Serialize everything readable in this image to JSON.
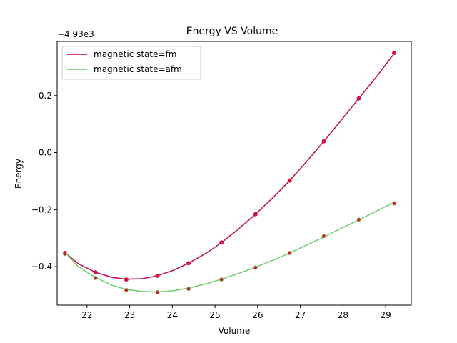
{
  "chart_data": {
    "type": "line",
    "title": "Energy VS Volume",
    "xlabel": "Volume",
    "ylabel": "Energy",
    "offset_text": "−4.93e3",
    "xlim": [
      21.3,
      29.6
    ],
    "ylim": [
      -0.535,
      0.39
    ],
    "x_ticks": [
      22,
      23,
      24,
      25,
      26,
      27,
      28,
      29
    ],
    "y_ticks": [
      -0.4,
      -0.2,
      0.0,
      0.2
    ],
    "y_tick_labels": [
      "−0.4",
      "−0.2",
      "0.0",
      "0.2"
    ],
    "legend_position": "upper-left",
    "grid": false,
    "point_color": "#e3102a",
    "series": [
      {
        "name": "magnetic state=fm",
        "color": "#c2185b",
        "points": [
          [
            21.48,
            -0.352
          ],
          [
            22.2,
            -0.42
          ],
          [
            22.92,
            -0.445
          ],
          [
            23.65,
            -0.432
          ],
          [
            24.38,
            -0.388
          ],
          [
            25.15,
            -0.315
          ],
          [
            25.95,
            -0.216
          ],
          [
            26.75,
            -0.098
          ],
          [
            27.55,
            0.04
          ],
          [
            28.37,
            0.19
          ],
          [
            29.2,
            0.35
          ]
        ],
        "fit": [
          [
            21.48,
            -0.35
          ],
          [
            21.8,
            -0.39
          ],
          [
            22.2,
            -0.42
          ],
          [
            22.6,
            -0.438
          ],
          [
            22.92,
            -0.444
          ],
          [
            23.3,
            -0.442
          ],
          [
            23.65,
            -0.432
          ],
          [
            24.0,
            -0.414
          ],
          [
            24.38,
            -0.388
          ],
          [
            24.8,
            -0.352
          ],
          [
            25.15,
            -0.316
          ],
          [
            25.55,
            -0.268
          ],
          [
            25.95,
            -0.216
          ],
          [
            26.35,
            -0.159
          ],
          [
            26.75,
            -0.098
          ],
          [
            27.15,
            -0.031
          ],
          [
            27.55,
            0.039
          ],
          [
            27.95,
            0.112
          ],
          [
            28.37,
            0.19
          ],
          [
            28.8,
            0.269
          ],
          [
            29.2,
            0.348
          ]
        ]
      },
      {
        "name": "magnetic state=afm",
        "color": "#77d077",
        "points": [
          [
            21.48,
            -0.355
          ],
          [
            22.2,
            -0.44
          ],
          [
            22.92,
            -0.482
          ],
          [
            23.65,
            -0.49
          ],
          [
            24.38,
            -0.478
          ],
          [
            25.15,
            -0.445
          ],
          [
            25.95,
            -0.403
          ],
          [
            26.75,
            -0.352
          ],
          [
            27.55,
            -0.293
          ],
          [
            28.37,
            -0.235
          ],
          [
            29.2,
            -0.178
          ]
        ],
        "fit": [
          [
            21.48,
            -0.35
          ],
          [
            21.8,
            -0.4
          ],
          [
            22.2,
            -0.438
          ],
          [
            22.6,
            -0.466
          ],
          [
            22.92,
            -0.48
          ],
          [
            23.3,
            -0.487
          ],
          [
            23.6,
            -0.489
          ],
          [
            24.0,
            -0.485
          ],
          [
            24.38,
            -0.475
          ],
          [
            24.8,
            -0.46
          ],
          [
            25.15,
            -0.444
          ],
          [
            25.55,
            -0.424
          ],
          [
            25.95,
            -0.402
          ],
          [
            26.35,
            -0.378
          ],
          [
            26.75,
            -0.352
          ],
          [
            27.15,
            -0.324
          ],
          [
            27.55,
            -0.296
          ],
          [
            27.95,
            -0.266
          ],
          [
            28.37,
            -0.236
          ],
          [
            28.8,
            -0.204
          ],
          [
            29.2,
            -0.174
          ]
        ]
      }
    ]
  }
}
